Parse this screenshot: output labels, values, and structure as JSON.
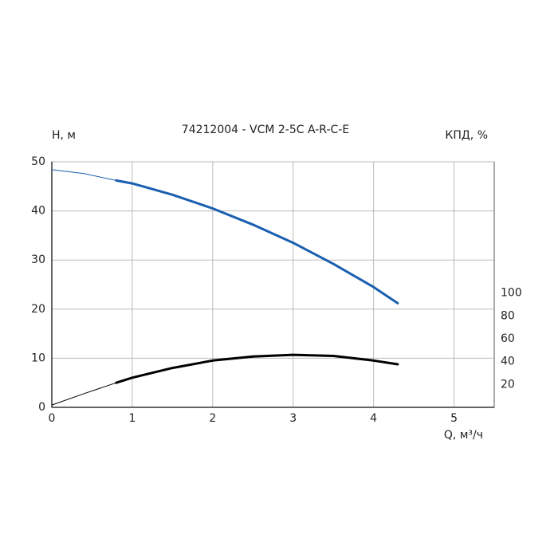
{
  "chart_data": {
    "type": "line",
    "title": "74212004 - VCM 2-5C A-R-C-E",
    "ylabel": "H, м",
    "y2label": "КПД, %",
    "xlabel": "Q, м³/ч",
    "xlim": [
      0,
      5.5
    ],
    "xticks": [
      0,
      1,
      2,
      3,
      4,
      5
    ],
    "ylim": [
      0,
      50
    ],
    "yticks": [
      0,
      10,
      20,
      30,
      40,
      50
    ],
    "y2lim": [
      0,
      215
    ],
    "y2ticks": [
      20,
      40,
      60,
      80,
      100
    ],
    "grid": true,
    "series": [
      {
        "color": "#1a5fb0",
        "line_width": 1,
        "x": [
          0,
          0.4,
          0.8
        ],
        "values": [
          48.4,
          47.6,
          46.2
        ]
      },
      {
        "color": "#1a5fb0",
        "line_width": 3,
        "x": [
          0.8,
          1,
          1.5,
          2,
          2.5,
          3,
          3.5,
          4,
          4.3
        ],
        "values": [
          46.2,
          45.6,
          43.3,
          40.5,
          37.2,
          33.5,
          29.2,
          24.5,
          21.2
        ]
      },
      {
        "color": "#000000",
        "line_width": 1,
        "axis": "y2",
        "x": [
          0,
          0.4,
          0.8
        ],
        "values": [
          2,
          12,
          21.5
        ]
      },
      {
        "color": "#000000",
        "line_width": 3,
        "axis": "y2",
        "x": [
          0.8,
          1,
          1.5,
          2,
          2.5,
          3,
          3.5,
          4,
          4.3
        ],
        "values": [
          21.5,
          26,
          34.5,
          41,
          44.5,
          46,
          45,
          41,
          37.7
        ]
      }
    ]
  }
}
